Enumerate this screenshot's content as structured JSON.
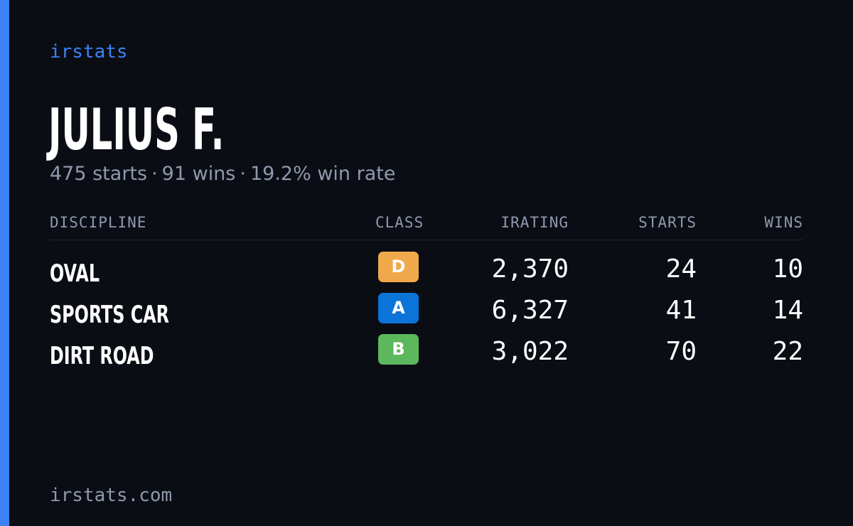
{
  "brand": "irstats",
  "driver": {
    "name": "JULIUS F."
  },
  "summary": {
    "starts": "475 starts",
    "wins": "91 wins",
    "win_rate": "19.2% win rate",
    "separator": "·"
  },
  "table": {
    "headers": {
      "discipline": "DISCIPLINE",
      "class": "CLASS",
      "irating": "IRATING",
      "starts": "STARTS",
      "wins": "WINS"
    },
    "rows": [
      {
        "discipline": "OVAL",
        "class": "D",
        "class_color": "#f0a94a",
        "irating": "2,370",
        "starts": "24",
        "wins": "10"
      },
      {
        "discipline": "SPORTS CAR",
        "class": "A",
        "class_color": "#0a74d8",
        "irating": "6,327",
        "starts": "41",
        "wins": "14"
      },
      {
        "discipline": "DIRT ROAD",
        "class": "B",
        "class_color": "#5cb85c",
        "irating": "3,022",
        "starts": "70",
        "wins": "22"
      }
    ]
  },
  "footer": "irstats.com",
  "colors": {
    "background": "#0b0d14",
    "accent": "#3b82f6",
    "muted": "#8f99ad",
    "text": "#ffffff"
  }
}
